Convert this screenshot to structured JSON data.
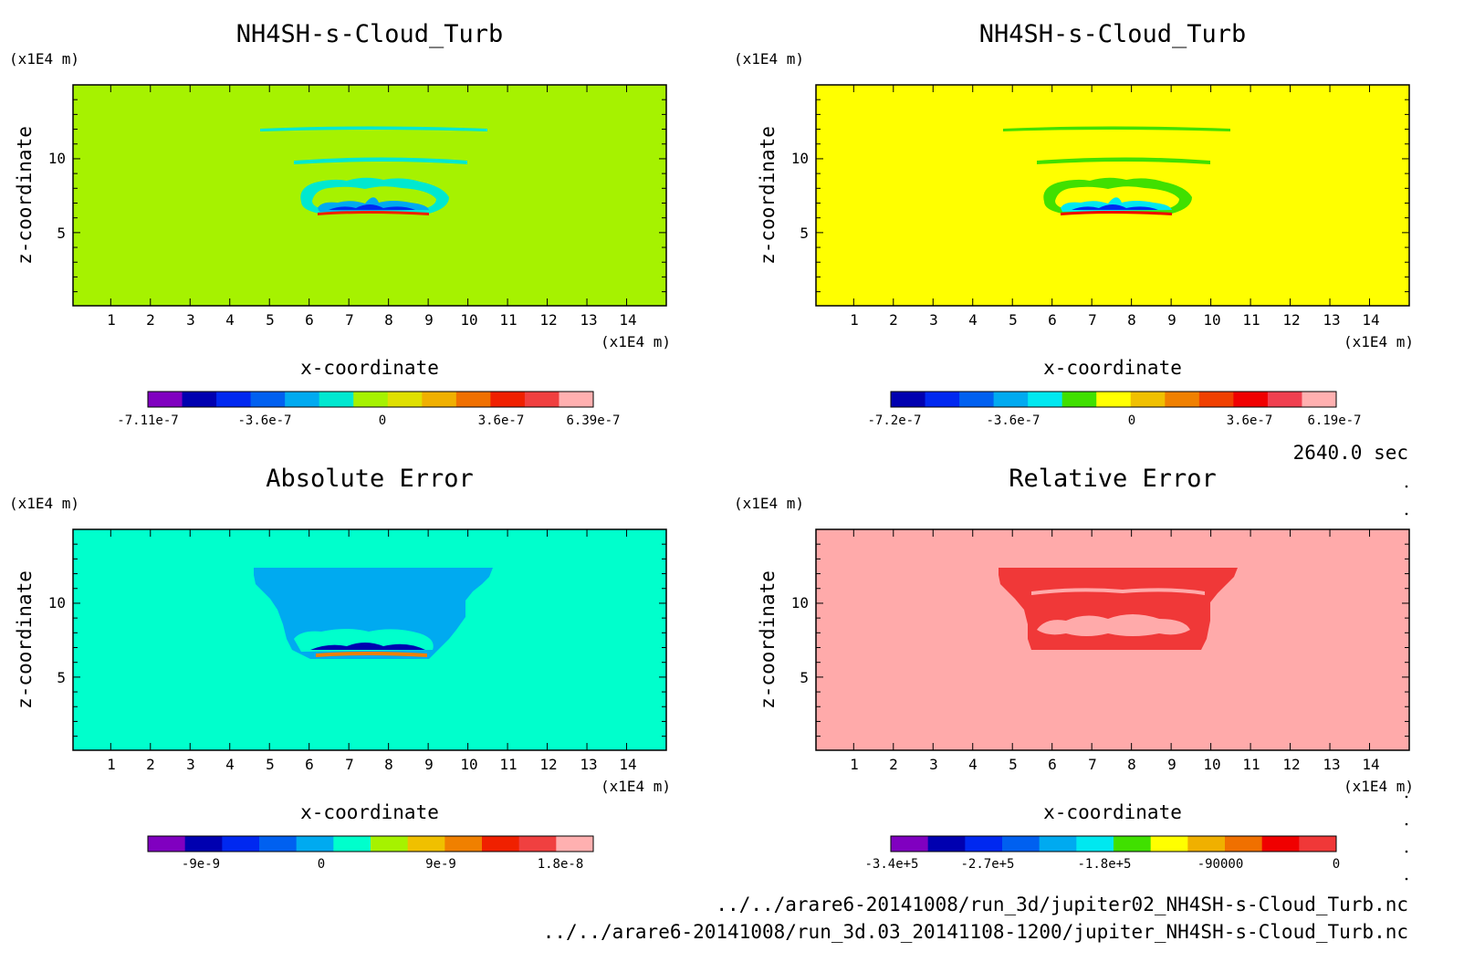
{
  "panels": [
    {
      "title": "NH4SH-s-Cloud_Turb",
      "xlabel": "x-coordinate",
      "ylabel": "z-coordinate",
      "x_unit": "(x1E4 m)",
      "y_unit": "(x1E4 m)",
      "background_color": "#a6f200",
      "colorbar": {
        "colors": [
          "#8000c0",
          "#0000b0",
          "#0028f0",
          "#0060f0",
          "#00aaf0",
          "#00e8d0",
          "#a6f200",
          "#e0e000",
          "#f0b000",
          "#f07000",
          "#f02000",
          "#f04040",
          "#ffb0b0"
        ],
        "tick_labels": [
          "-7.11e-7",
          "-3.6e-7",
          "0",
          "3.6e-7",
          "6.39e-7"
        ]
      }
    },
    {
      "title": "NH4SH-s-Cloud_Turb",
      "xlabel": "x-coordinate",
      "ylabel": "z-coordinate",
      "x_unit": "(x1E4 m)",
      "y_unit": "(x1E4 m)",
      "background_color": "#ffff00",
      "colorbar": {
        "colors": [
          "#0000b0",
          "#0028f0",
          "#0060f0",
          "#00aaf0",
          "#00e8f0",
          "#40e000",
          "#ffff00",
          "#f0c000",
          "#f08000",
          "#f04000",
          "#f00000",
          "#f04050",
          "#ffb0b0"
        ],
        "tick_labels": [
          "-7.2e-7",
          "-3.6e-7",
          "0",
          "3.6e-7",
          "6.19e-7"
        ]
      }
    },
    {
      "title": "Absolute Error",
      "xlabel": "x-coordinate",
      "ylabel": "z-coordinate",
      "x_unit": "(x1E4 m)",
      "y_unit": "(x1E4 m)",
      "background_color": "#00ffcc",
      "colorbar": {
        "colors": [
          "#8000c0",
          "#0000b0",
          "#0028f0",
          "#0060f0",
          "#00aaf0",
          "#00ffcc",
          "#a6f200",
          "#f0c000",
          "#f08000",
          "#f02000",
          "#f04040",
          "#ffb0b0"
        ],
        "tick_labels": [
          "-9e-9",
          "0",
          "9e-9",
          "1.8e-8"
        ]
      }
    },
    {
      "title": "Relative Error",
      "xlabel": "x-coordinate",
      "ylabel": "z-coordinate",
      "x_unit": "(x1E4 m)",
      "y_unit": "(x1E4 m)",
      "background_color": "#ffaaaa",
      "colorbar": {
        "colors": [
          "#8000c0",
          "#0000b0",
          "#0028f0",
          "#0060f0",
          "#00aaf0",
          "#00e8f0",
          "#40e000",
          "#ffff00",
          "#f0b000",
          "#f07000",
          "#f00000",
          "#f03838"
        ],
        "tick_labels": [
          "-3.4e+5",
          "-2.7e+5",
          "-1.8e+5",
          "-90000",
          "0"
        ]
      }
    }
  ],
  "time_label": "2640.0 sec",
  "file_paths": [
    "../../arare6-20141008/run_3d/jupiter02_NH4SH-s-Cloud_Turb.nc",
    "../../arare6-20141008/run_3d.03_20141108-1200/jupiter_NH4SH-s-Cloud_Turb.nc"
  ],
  "chart_data": [
    {
      "type": "heatmap",
      "title": "NH4SH-s-Cloud_Turb",
      "xlabel": "x-coordinate",
      "ylabel": "z-coordinate",
      "x_ticks": [
        1,
        2,
        3,
        4,
        5,
        6,
        7,
        8,
        9,
        10,
        11,
        12,
        13,
        14
      ],
      "y_ticks": [
        5,
        10
      ],
      "xlim": [
        0.05,
        15.0
      ],
      "ylim": [
        0.05,
        15.0
      ],
      "colorbar_ticks": [
        -7.11e-07,
        -3.6e-07,
        0,
        3.6e-07,
        6.39e-07
      ],
      "legend": "bottom"
    },
    {
      "type": "heatmap",
      "title": "NH4SH-s-Cloud_Turb",
      "xlabel": "x-coordinate",
      "ylabel": "z-coordinate",
      "x_ticks": [
        1,
        2,
        3,
        4,
        5,
        6,
        7,
        8,
        9,
        10,
        11,
        12,
        13,
        14
      ],
      "y_ticks": [
        5,
        10
      ],
      "xlim": [
        0.05,
        15.0
      ],
      "ylim": [
        0.05,
        15.0
      ],
      "colorbar_ticks": [
        -7.2e-07,
        -3.6e-07,
        0,
        3.6e-07,
        6.19e-07
      ],
      "legend": "bottom"
    },
    {
      "type": "heatmap",
      "title": "Absolute Error",
      "xlabel": "x-coordinate",
      "ylabel": "z-coordinate",
      "x_ticks": [
        1,
        2,
        3,
        4,
        5,
        6,
        7,
        8,
        9,
        10,
        11,
        12,
        13,
        14
      ],
      "y_ticks": [
        5,
        10
      ],
      "xlim": [
        0.05,
        15.0
      ],
      "ylim": [
        0.05,
        15.0
      ],
      "colorbar_ticks": [
        -9e-09,
        0,
        9e-09,
        1.8e-08
      ],
      "legend": "bottom"
    },
    {
      "type": "heatmap",
      "title": "Relative Error",
      "xlabel": "x-coordinate",
      "ylabel": "z-coordinate",
      "x_ticks": [
        1,
        2,
        3,
        4,
        5,
        6,
        7,
        8,
        9,
        10,
        11,
        12,
        13,
        14
      ],
      "y_ticks": [
        5,
        10
      ],
      "xlim": [
        0.05,
        15.0
      ],
      "ylim": [
        0.05,
        15.0
      ],
      "colorbar_ticks": [
        -340000,
        -270000,
        -180000,
        -90000,
        0
      ],
      "legend": "bottom"
    }
  ]
}
